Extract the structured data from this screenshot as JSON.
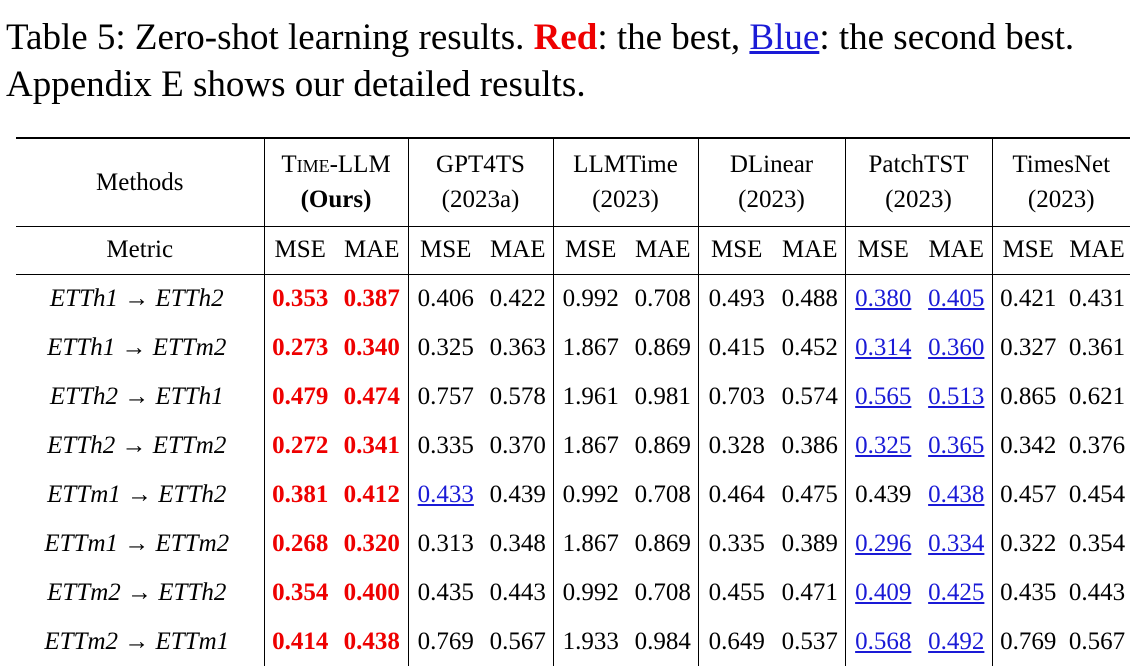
{
  "caption": {
    "prefix": "Table 5: Zero-shot learning results.",
    "red_word": "Red",
    "mid": ": the best,",
    "blue_word": "Blue",
    "suffix": ": the second best. Appendix E shows our detailed results."
  },
  "table": {
    "methods_header": "Methods",
    "metric_header": "Metric",
    "models": [
      {
        "name": "Time-LLM",
        "sub": "(Ours)"
      },
      {
        "name": "GPT4TS",
        "sub": "(2023a)"
      },
      {
        "name": "LLMTime",
        "sub": "(2023)"
      },
      {
        "name": "DLinear",
        "sub": "(2023)"
      },
      {
        "name": "PatchTST",
        "sub": "(2023)"
      },
      {
        "name": "TimesNet",
        "sub": "(2023)"
      }
    ],
    "metric_labels": [
      "MSE",
      "MAE"
    ],
    "rows": [
      {
        "task": "ETTh1 → ETTh2",
        "values": [
          "0.353",
          "0.387",
          "0.406",
          "0.422",
          "0.992",
          "0.708",
          "0.493",
          "0.488",
          "0.380",
          "0.405",
          "0.421",
          "0.431"
        ]
      },
      {
        "task": "ETTh1 → ETTm2",
        "values": [
          "0.273",
          "0.340",
          "0.325",
          "0.363",
          "1.867",
          "0.869",
          "0.415",
          "0.452",
          "0.314",
          "0.360",
          "0.327",
          "0.361"
        ]
      },
      {
        "task": "ETTh2 → ETTh1",
        "values": [
          "0.479",
          "0.474",
          "0.757",
          "0.578",
          "1.961",
          "0.981",
          "0.703",
          "0.574",
          "0.565",
          "0.513",
          "0.865",
          "0.621"
        ]
      },
      {
        "task": "ETTh2 → ETTm2",
        "values": [
          "0.272",
          "0.341",
          "0.335",
          "0.370",
          "1.867",
          "0.869",
          "0.328",
          "0.386",
          "0.325",
          "0.365",
          "0.342",
          "0.376"
        ]
      },
      {
        "task": "ETTm1 → ETTh2",
        "values": [
          "0.381",
          "0.412",
          "0.433",
          "0.439",
          "0.992",
          "0.708",
          "0.464",
          "0.475",
          "0.439",
          "0.438",
          "0.457",
          "0.454"
        ]
      },
      {
        "task": "ETTm1 → ETTm2",
        "values": [
          "0.268",
          "0.320",
          "0.313",
          "0.348",
          "1.867",
          "0.869",
          "0.335",
          "0.389",
          "0.296",
          "0.334",
          "0.322",
          "0.354"
        ]
      },
      {
        "task": "ETTm2 → ETTh2",
        "values": [
          "0.354",
          "0.400",
          "0.435",
          "0.443",
          "0.992",
          "0.708",
          "0.455",
          "0.471",
          "0.409",
          "0.425",
          "0.435",
          "0.443"
        ]
      },
      {
        "task": "ETTm2 → ETTm1",
        "values": [
          "0.414",
          "0.438",
          "0.769",
          "0.567",
          "1.933",
          "0.984",
          "0.649",
          "0.537",
          "0.568",
          "0.492",
          "0.769",
          "0.567"
        ]
      }
    ],
    "highlight": {
      "best_color": "#ee0000",
      "second_color": "#1a1ad6",
      "best_cols": [
        0,
        1
      ],
      "second": [
        [
          8,
          9
        ],
        [
          8,
          9
        ],
        [
          8,
          9
        ],
        [
          8,
          9
        ],
        [
          2,
          9
        ],
        [
          8,
          9
        ],
        [
          8,
          9
        ],
        [
          8,
          9
        ]
      ]
    }
  }
}
